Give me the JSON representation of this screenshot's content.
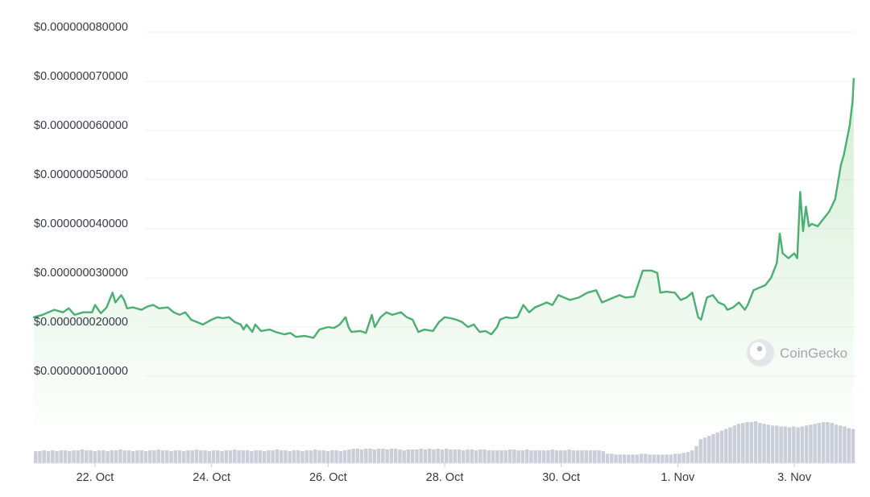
{
  "chart_data": {
    "type": "line",
    "title": "",
    "xlabel": "",
    "ylabel": "",
    "ylim": [
      0,
      8.5e-08
    ],
    "y_ticks": [
      {
        "value": 1e-08,
        "label": "$0.000000010000"
      },
      {
        "value": 2e-08,
        "label": "$0.000000020000"
      },
      {
        "value": 3e-08,
        "label": "$0.000000030000"
      },
      {
        "value": 4e-08,
        "label": "$0.000000040000"
      },
      {
        "value": 5e-08,
        "label": "$0.000000050000"
      },
      {
        "value": 6e-08,
        "label": "$0.000000060000"
      },
      {
        "value": 7e-08,
        "label": "$0.000000070000"
      },
      {
        "value": 8e-08,
        "label": "$0.000000080000"
      }
    ],
    "x_ticks": [
      {
        "value": 22.0,
        "label": "22. Oct"
      },
      {
        "value": 24.0,
        "label": "24. Oct"
      },
      {
        "value": 26.0,
        "label": "26. Oct"
      },
      {
        "value": 28.0,
        "label": "28. Oct"
      },
      {
        "value": 30.0,
        "label": "30. Oct"
      },
      {
        "value": 32.0,
        "label": "1. Nov"
      },
      {
        "value": 34.0,
        "label": "3. Nov"
      }
    ],
    "xlim": [
      20.95,
      35.05
    ],
    "grid": true,
    "line_color": "#4caf72",
    "fill_color": "#8fd18f",
    "volume_color": "#c9ced8",
    "series": [
      {
        "values": [
          [
            20.95,
            2.2e-08
          ],
          [
            21.1,
            2.25e-08
          ],
          [
            21.2,
            2.3e-08
          ],
          [
            21.3,
            2.35e-08
          ],
          [
            21.45,
            2.3e-08
          ],
          [
            21.55,
            2.38e-08
          ],
          [
            21.65,
            2.25e-08
          ],
          [
            21.8,
            2.3e-08
          ],
          [
            21.95,
            2.3e-08
          ],
          [
            22.0,
            2.45e-08
          ],
          [
            22.1,
            2.28e-08
          ],
          [
            22.2,
            2.4e-08
          ],
          [
            22.3,
            2.7e-08
          ],
          [
            22.35,
            2.5e-08
          ],
          [
            22.45,
            2.65e-08
          ],
          [
            22.5,
            2.55e-08
          ],
          [
            22.55,
            2.38e-08
          ],
          [
            22.65,
            2.4e-08
          ],
          [
            22.8,
            2.35e-08
          ],
          [
            22.9,
            2.42e-08
          ],
          [
            23.0,
            2.45e-08
          ],
          [
            23.1,
            2.38e-08
          ],
          [
            23.25,
            2.4e-08
          ],
          [
            23.35,
            2.3e-08
          ],
          [
            23.45,
            2.25e-08
          ],
          [
            23.55,
            2.3e-08
          ],
          [
            23.65,
            2.15e-08
          ],
          [
            23.75,
            2.1e-08
          ],
          [
            23.85,
            2.05e-08
          ],
          [
            24.0,
            2.15e-08
          ],
          [
            24.1,
            2.2e-08
          ],
          [
            24.2,
            2.18e-08
          ],
          [
            24.3,
            2.2e-08
          ],
          [
            24.4,
            2.1e-08
          ],
          [
            24.5,
            2.05e-08
          ],
          [
            24.55,
            1.95e-08
          ],
          [
            24.6,
            2.05e-08
          ],
          [
            24.7,
            1.9e-08
          ],
          [
            24.75,
            2.05e-08
          ],
          [
            24.85,
            1.92e-08
          ],
          [
            25.0,
            1.95e-08
          ],
          [
            25.1,
            1.9e-08
          ],
          [
            25.25,
            1.85e-08
          ],
          [
            25.35,
            1.88e-08
          ],
          [
            25.45,
            1.8e-08
          ],
          [
            25.6,
            1.82e-08
          ],
          [
            25.75,
            1.78e-08
          ],
          [
            25.85,
            1.95e-08
          ],
          [
            26.0,
            2e-08
          ],
          [
            26.1,
            1.98e-08
          ],
          [
            26.2,
            2.05e-08
          ],
          [
            26.3,
            2.2e-08
          ],
          [
            26.35,
            2e-08
          ],
          [
            26.4,
            1.9e-08
          ],
          [
            26.55,
            1.92e-08
          ],
          [
            26.65,
            1.88e-08
          ],
          [
            26.75,
            2.25e-08
          ],
          [
            26.8,
            2e-08
          ],
          [
            26.9,
            2.2e-08
          ],
          [
            27.0,
            2.3e-08
          ],
          [
            27.1,
            2.25e-08
          ],
          [
            27.25,
            2.3e-08
          ],
          [
            27.35,
            2.2e-08
          ],
          [
            27.45,
            2.15e-08
          ],
          [
            27.55,
            1.9e-08
          ],
          [
            27.65,
            1.95e-08
          ],
          [
            27.8,
            1.92e-08
          ],
          [
            27.9,
            2.1e-08
          ],
          [
            28.0,
            2.2e-08
          ],
          [
            28.1,
            2.18e-08
          ],
          [
            28.2,
            2.15e-08
          ],
          [
            28.3,
            2.1e-08
          ],
          [
            28.4,
            2e-08
          ],
          [
            28.5,
            2.05e-08
          ],
          [
            28.6,
            1.9e-08
          ],
          [
            28.7,
            1.92e-08
          ],
          [
            28.8,
            1.85e-08
          ],
          [
            28.9,
            2e-08
          ],
          [
            28.95,
            2.15e-08
          ],
          [
            29.05,
            2.2e-08
          ],
          [
            29.15,
            2.18e-08
          ],
          [
            29.25,
            2.2e-08
          ],
          [
            29.35,
            2.45e-08
          ],
          [
            29.45,
            2.3e-08
          ],
          [
            29.55,
            2.4e-08
          ],
          [
            29.65,
            2.45e-08
          ],
          [
            29.75,
            2.5e-08
          ],
          [
            29.85,
            2.45e-08
          ],
          [
            29.95,
            2.65e-08
          ],
          [
            30.05,
            2.6e-08
          ],
          [
            30.15,
            2.55e-08
          ],
          [
            30.3,
            2.6e-08
          ],
          [
            30.45,
            2.7e-08
          ],
          [
            30.6,
            2.75e-08
          ],
          [
            30.7,
            2.5e-08
          ],
          [
            30.8,
            2.55e-08
          ],
          [
            30.9,
            2.6e-08
          ],
          [
            31.0,
            2.65e-08
          ],
          [
            31.1,
            2.6e-08
          ],
          [
            31.25,
            2.62e-08
          ],
          [
            31.4,
            3.15e-08
          ],
          [
            31.55,
            3.15e-08
          ],
          [
            31.65,
            3.1e-08
          ],
          [
            31.7,
            2.7e-08
          ],
          [
            31.8,
            2.72e-08
          ],
          [
            31.95,
            2.7e-08
          ],
          [
            32.05,
            2.55e-08
          ],
          [
            32.15,
            2.6e-08
          ],
          [
            32.25,
            2.7e-08
          ],
          [
            32.35,
            2.2e-08
          ],
          [
            32.4,
            2.15e-08
          ],
          [
            32.5,
            2.6e-08
          ],
          [
            32.6,
            2.65e-08
          ],
          [
            32.7,
            2.5e-08
          ],
          [
            32.8,
            2.45e-08
          ],
          [
            32.85,
            2.35e-08
          ],
          [
            32.95,
            2.4e-08
          ],
          [
            33.05,
            2.5e-08
          ],
          [
            33.15,
            2.35e-08
          ],
          [
            33.2,
            2.45e-08
          ],
          [
            33.3,
            2.75e-08
          ],
          [
            33.4,
            2.8e-08
          ],
          [
            33.5,
            2.85e-08
          ],
          [
            33.6,
            3e-08
          ],
          [
            33.7,
            3.3e-08
          ],
          [
            33.75,
            3.9e-08
          ],
          [
            33.8,
            3.5e-08
          ],
          [
            33.9,
            3.4e-08
          ],
          [
            34.0,
            3.5e-08
          ],
          [
            34.05,
            3.4e-08
          ],
          [
            34.1,
            4.75e-08
          ],
          [
            34.15,
            3.95e-08
          ],
          [
            34.2,
            4.45e-08
          ],
          [
            34.25,
            4.05e-08
          ],
          [
            34.3,
            4.1e-08
          ],
          [
            34.4,
            4.05e-08
          ],
          [
            34.5,
            4.2e-08
          ],
          [
            34.6,
            4.35e-08
          ],
          [
            34.7,
            4.6e-08
          ],
          [
            34.8,
            5.3e-08
          ],
          [
            34.85,
            5.5e-08
          ],
          [
            34.9,
            5.8e-08
          ],
          [
            34.95,
            6.1e-08
          ],
          [
            35.0,
            6.6e-08
          ],
          [
            35.02,
            7.05e-08
          ]
        ]
      }
    ],
    "volume": [
      14,
      14,
      15,
      14,
      15,
      14,
      15,
      15,
      14,
      15,
      15,
      16,
      15,
      15,
      14,
      15,
      15,
      14,
      15,
      15,
      16,
      15,
      15,
      14,
      15,
      15,
      14,
      15,
      15,
      16,
      15,
      15,
      14,
      15,
      15,
      14,
      15,
      15,
      16,
      15,
      15,
      14,
      15,
      15,
      14,
      15,
      15,
      16,
      15,
      15,
      15,
      14,
      15,
      15,
      14,
      15,
      15,
      16,
      15,
      15,
      14,
      15,
      15,
      14,
      15,
      15,
      16,
      15,
      15,
      14,
      15,
      15,
      14,
      15,
      16,
      17,
      17,
      16,
      17,
      17,
      16,
      17,
      17,
      16,
      17,
      17,
      16,
      15,
      16,
      16,
      16,
      17,
      16,
      17,
      16,
      17,
      16,
      17,
      16,
      16,
      16,
      15,
      16,
      16,
      15,
      16,
      16,
      15,
      15,
      15,
      15,
      15,
      16,
      16,
      15,
      15,
      16,
      15,
      15,
      15,
      15,
      15,
      16,
      15,
      15,
      15,
      16,
      15,
      15,
      15,
      15,
      15,
      15,
      15,
      14,
      11,
      11,
      10,
      10,
      10,
      10,
      10,
      10,
      11,
      11,
      10,
      10,
      10,
      10,
      10,
      10,
      11,
      11,
      12,
      13,
      15,
      20,
      28,
      30,
      32,
      34,
      36,
      38,
      40,
      42,
      44,
      46,
      47,
      48,
      48,
      49,
      47,
      46,
      45,
      44,
      44,
      43,
      43,
      42,
      43,
      42,
      43,
      44,
      45,
      46,
      47,
      48,
      48,
      47,
      45,
      44,
      43,
      41,
      40
    ]
  },
  "watermark": {
    "text": "CoinGecko",
    "icon": "gecko-logo-icon"
  }
}
